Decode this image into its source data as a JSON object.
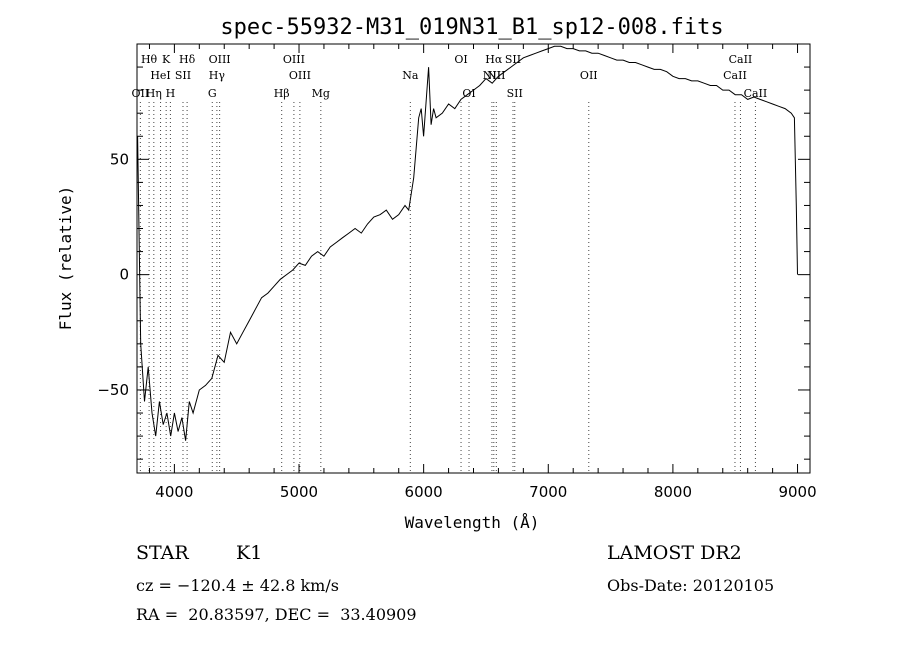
{
  "chart_data": {
    "type": "line",
    "title": "spec-55932-M31_019N31_B1_sp12-008.fits",
    "xlabel": "Wavelength (Å)",
    "ylabel": "Flux (relative)",
    "xlim": [
      3700,
      9100
    ],
    "ylim": [
      -86,
      100
    ],
    "x_ticks": [
      4000,
      5000,
      6000,
      7000,
      8000,
      9000
    ],
    "y_ticks": [
      -50,
      0,
      50
    ],
    "grid": false,
    "series": [
      {
        "x": [
          3705,
          3730,
          3760,
          3790,
          3820,
          3850,
          3880,
          3910,
          3940,
          3970,
          4000,
          4030,
          4060,
          4090,
          4120,
          4150,
          4200,
          4250,
          4300,
          4350,
          4400,
          4450,
          4500,
          4550,
          4600,
          4650,
          4700,
          4750,
          4800,
          4850,
          4900,
          4950,
          5000,
          5050,
          5100,
          5150,
          5200,
          5250,
          5300,
          5350,
          5400,
          5450,
          5500,
          5550,
          5600,
          5650,
          5700,
          5750,
          5800,
          5850,
          5880,
          5900,
          5920,
          5940,
          5960,
          5980,
          6000,
          6020,
          6040,
          6060,
          6080,
          6100,
          6150,
          6200,
          6250,
          6300,
          6350,
          6400,
          6450,
          6500,
          6550,
          6600,
          6650,
          6700,
          6750,
          6800,
          6850,
          6900,
          6950,
          7000,
          7050,
          7100,
          7150,
          7200,
          7250,
          7300,
          7350,
          7400,
          7450,
          7500,
          7550,
          7600,
          7650,
          7700,
          7750,
          7800,
          7850,
          7900,
          7950,
          8000,
          8050,
          8100,
          8150,
          8200,
          8250,
          8300,
          8350,
          8400,
          8450,
          8500,
          8550,
          8600,
          8650,
          8700,
          8750,
          8800,
          8850,
          8900,
          8950,
          8975,
          8990,
          9000
        ],
        "y": [
          60,
          -30,
          -55,
          -40,
          -60,
          -70,
          -55,
          -65,
          -60,
          -70,
          -60,
          -68,
          -62,
          -72,
          -55,
          -60,
          -50,
          -48,
          -45,
          -35,
          -38,
          -25,
          -30,
          -25,
          -20,
          -15,
          -10,
          -8,
          -5,
          -2,
          0,
          2,
          5,
          4,
          8,
          10,
          8,
          12,
          14,
          16,
          18,
          20,
          18,
          22,
          25,
          26,
          28,
          24,
          26,
          30,
          28,
          35,
          42,
          55,
          68,
          72,
          60,
          75,
          90,
          65,
          72,
          68,
          70,
          74,
          72,
          76,
          78,
          80,
          82,
          85,
          83,
          86,
          88,
          90,
          92,
          94,
          95,
          96,
          97,
          98,
          99,
          99,
          98,
          98,
          97,
          97,
          96,
          96,
          95,
          94,
          93,
          93,
          92,
          92,
          91,
          90,
          89,
          89,
          88,
          86,
          85,
          85,
          84,
          84,
          83,
          82,
          82,
          80,
          80,
          78,
          78,
          76,
          77,
          76,
          75,
          74,
          73,
          72,
          70,
          68,
          30,
          0
        ]
      }
    ],
    "annotations": [
      {
        "label": "Hθ",
        "x": 3797,
        "row": 1
      },
      {
        "label": "K",
        "x": 3934,
        "row": 1
      },
      {
        "label": "Hδ",
        "x": 4102,
        "row": 1
      },
      {
        "label": "OIII",
        "x": 4363,
        "row": 1
      },
      {
        "label": "OIII",
        "x": 4959,
        "row": 1
      },
      {
        "label": "OI",
        "x": 6300,
        "row": 1
      },
      {
        "label": "Hα",
        "x": 6563,
        "row": 1
      },
      {
        "label": "SII",
        "x": 6717,
        "row": 1
      },
      {
        "label": "CaII",
        "x": 8542,
        "row": 1
      },
      {
        "label": "HeI",
        "x": 3889,
        "row": 2
      },
      {
        "label": "SII",
        "x": 4069,
        "row": 2
      },
      {
        "label": "Hγ",
        "x": 4341,
        "row": 2
      },
      {
        "label": "OIII",
        "x": 5007,
        "row": 2
      },
      {
        "label": "Na",
        "x": 5893,
        "row": 2
      },
      {
        "label": "NII",
        "x": 6548,
        "row": 2
      },
      {
        "label": "NII",
        "x": 6583,
        "row": 2
      },
      {
        "label": "OII",
        "x": 7325,
        "row": 2
      },
      {
        "label": "CaII",
        "x": 8498,
        "row": 2
      },
      {
        "label": "OII",
        "x": 3727,
        "row": 3
      },
      {
        "label": "Hη",
        "x": 3835,
        "row": 3
      },
      {
        "label": "H",
        "x": 3968,
        "row": 3
      },
      {
        "label": "G",
        "x": 4304,
        "row": 3
      },
      {
        "label": "Hβ",
        "x": 4861,
        "row": 3
      },
      {
        "label": "Mg",
        "x": 5175,
        "row": 3
      },
      {
        "label": "OI",
        "x": 6364,
        "row": 3
      },
      {
        "label": "SII",
        "x": 6731,
        "row": 3
      },
      {
        "label": "CaII",
        "x": 8662,
        "row": 3
      }
    ],
    "line_markers": [
      3727,
      3797,
      3835,
      3889,
      3934,
      3968,
      4069,
      4102,
      4304,
      4341,
      4363,
      4861,
      4959,
      5007,
      5175,
      5893,
      6300,
      6364,
      6548,
      6563,
      6583,
      6717,
      6731,
      7325,
      8498,
      8542,
      8662
    ]
  },
  "info": {
    "class": "STAR",
    "subclass": "K1",
    "survey": "LAMOST DR2",
    "cz": "cz = −120.4 ± 42.8 km/s",
    "obs_date": "Obs-Date: 20120105",
    "coords": "RA =  20.83597, DEC =  33.40909"
  }
}
